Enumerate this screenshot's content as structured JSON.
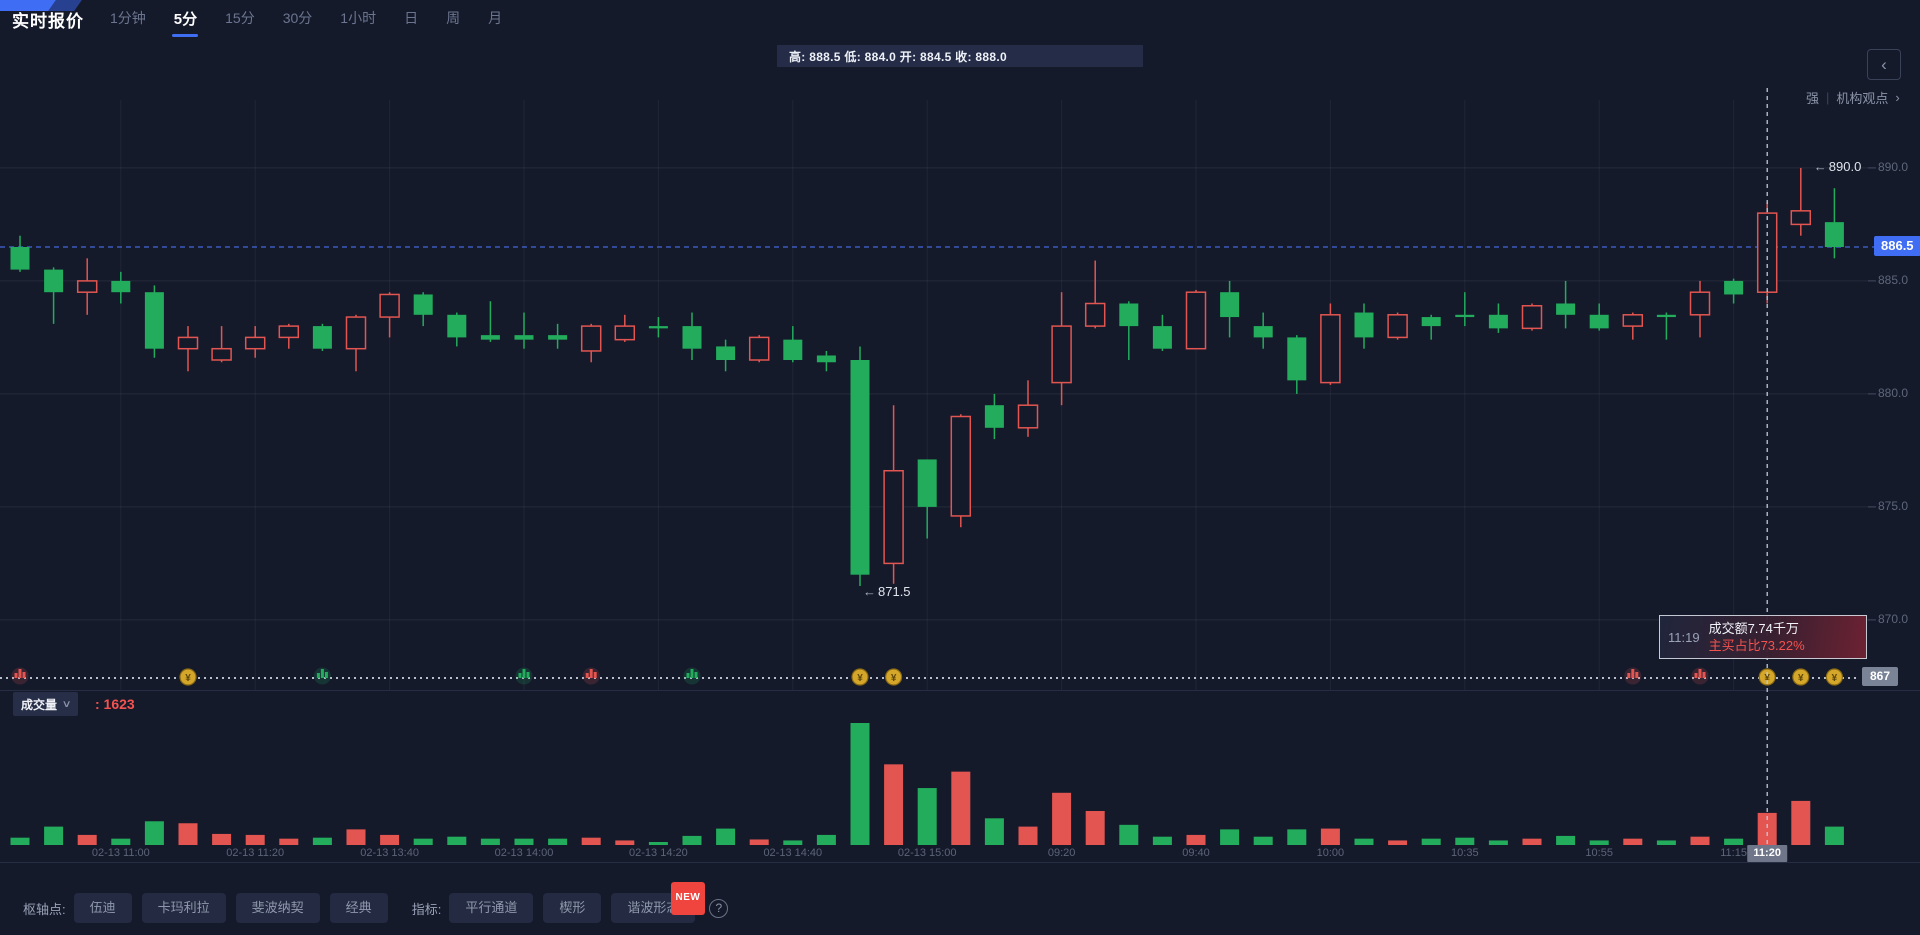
{
  "header": {
    "title": "实时报价",
    "tabs": [
      {
        "label": "1分钟",
        "active": false
      },
      {
        "label": "5分",
        "active": true
      },
      {
        "label": "15分",
        "active": false
      },
      {
        "label": "30分",
        "active": false
      },
      {
        "label": "1小时",
        "active": false
      },
      {
        "label": "日",
        "active": false
      },
      {
        "label": "周",
        "active": false
      },
      {
        "label": "月",
        "active": false
      }
    ]
  },
  "info_bar": {
    "text": "高: 888.5 低: 884.0 开: 884.5 收: 888.0"
  },
  "side": {
    "collapse_icon": "‹",
    "strength": "强",
    "divider": "|",
    "link": "机构观点",
    "chevron": "›"
  },
  "badges": {
    "current_price": "886.5",
    "floor": "867",
    "crosshair_time": "11:20"
  },
  "annotations": {
    "high": {
      "arrow": "←",
      "text": "890.0"
    },
    "low": {
      "arrow": "←",
      "text": "871.5"
    }
  },
  "tooltip": {
    "time": "11:19",
    "line1": "成交额7.74千万",
    "line2": "主买占比73.22%"
  },
  "volume_header": {
    "name": "成交量",
    "chevron": "∨",
    "value": ": 1623"
  },
  "toolbar": {
    "pivot_label": "枢轴点:",
    "pivot_buttons": [
      "伍迪",
      "卡玛利拉",
      "斐波纳契",
      "经典"
    ],
    "indicator_label": "指标:",
    "indicators": [
      {
        "label": "平行通道"
      },
      {
        "label": "楔形"
      },
      {
        "label": "谐波形态",
        "badge": "NEW"
      }
    ],
    "help": "?"
  },
  "colors": {
    "up": "#e25550",
    "down": "#22ac5c",
    "accent_blue": "#3f6ef5",
    "gold": "#d4a62a",
    "red_text": "#f4524e",
    "bg": "#151a2b",
    "grid": "rgba(255,255,255,0.07)",
    "vgrid": "rgba(255,255,255,0.05)",
    "crosshair": "#c2c8d4",
    "separator_dots": "#b8bfcc"
  },
  "chart_data": {
    "type": "candlestick",
    "interval": "5分",
    "convention": "red=up(hollow), green=down(solid)",
    "current_price": 886.5,
    "hovered_volume": 1623,
    "y_ticks": [
      {
        "price": 890,
        "label": "890.0"
      },
      {
        "price": 885,
        "label": "885.0"
      },
      {
        "price": 880,
        "label": "880.0"
      },
      {
        "price": 875,
        "label": "875.0"
      },
      {
        "price": 870,
        "label": "870.0"
      }
    ],
    "ylim_shown": [
      867,
      891.5
    ],
    "x_labels": [
      {
        "index": 3,
        "label": "02-13 11:00"
      },
      {
        "index": 7,
        "label": "02-13 11:20"
      },
      {
        "index": 11,
        "label": "02-13 13:40"
      },
      {
        "index": 15,
        "label": "02-13 14:00"
      },
      {
        "index": 19,
        "label": "02-13 14:20"
      },
      {
        "index": 23,
        "label": "02-13 14:40"
      },
      {
        "index": 27,
        "label": "02-13 15:00"
      },
      {
        "index": 31,
        "label": "09:20"
      },
      {
        "index": 35,
        "label": "09:40"
      },
      {
        "index": 39,
        "label": "10:00"
      },
      {
        "index": 43,
        "label": "10:35"
      },
      {
        "index": 47,
        "label": "10:55"
      },
      {
        "index": 51,
        "label": "11:15"
      }
    ],
    "crosshair_index": 52,
    "high_annotation": {
      "index": 53,
      "price": 890.0
    },
    "low_annotation": {
      "index": 25,
      "price": 871.5
    },
    "candles_ohlc": [
      [
        886.5,
        887.0,
        885.4,
        885.5
      ],
      [
        885.5,
        885.6,
        883.1,
        884.5
      ],
      [
        884.5,
        886.0,
        883.5,
        885.0
      ],
      [
        885.0,
        885.4,
        884.0,
        884.5
      ],
      [
        884.5,
        884.8,
        881.6,
        882.0
      ],
      [
        882.0,
        883.0,
        881.0,
        882.5
      ],
      [
        881.5,
        883.0,
        881.4,
        882.0
      ],
      [
        882.0,
        883.0,
        881.6,
        882.5
      ],
      [
        882.5,
        883.1,
        882.0,
        883.0
      ],
      [
        883.0,
        883.1,
        881.9,
        882.0
      ],
      [
        882.0,
        883.5,
        881.0,
        883.4
      ],
      [
        883.4,
        884.5,
        882.5,
        884.4
      ],
      [
        884.4,
        884.5,
        883.0,
        883.5
      ],
      [
        883.5,
        883.6,
        882.1,
        882.5
      ],
      [
        882.6,
        884.1,
        882.3,
        882.4
      ],
      [
        882.6,
        883.6,
        882.0,
        882.4
      ],
      [
        882.6,
        883.1,
        882.0,
        882.4
      ],
      [
        881.9,
        883.1,
        881.4,
        883.0
      ],
      [
        882.4,
        883.5,
        882.3,
        883.0
      ],
      [
        883.0,
        883.4,
        882.5,
        882.9
      ],
      [
        883.0,
        883.6,
        881.5,
        882.0
      ],
      [
        882.1,
        882.4,
        881.0,
        881.5
      ],
      [
        881.5,
        882.6,
        881.4,
        882.5
      ],
      [
        882.4,
        883.0,
        881.4,
        881.5
      ],
      [
        881.7,
        881.9,
        881.0,
        881.4
      ],
      [
        881.5,
        882.1,
        871.5,
        872.0
      ],
      [
        872.5,
        879.5,
        871.6,
        876.6
      ],
      [
        877.1,
        877.1,
        873.6,
        875.0
      ],
      [
        874.6,
        879.1,
        874.1,
        879.0
      ],
      [
        879.5,
        880.0,
        878.0,
        878.5
      ],
      [
        878.5,
        880.6,
        878.1,
        879.5
      ],
      [
        880.5,
        884.5,
        879.5,
        883.0
      ],
      [
        883.0,
        885.9,
        882.9,
        884.0
      ],
      [
        884.0,
        884.1,
        881.5,
        883.0
      ],
      [
        883.0,
        883.5,
        881.9,
        882.0
      ],
      [
        882.0,
        884.6,
        882.0,
        884.5
      ],
      [
        884.5,
        885.0,
        882.5,
        883.4
      ],
      [
        883.0,
        883.6,
        882.0,
        882.5
      ],
      [
        882.5,
        882.6,
        880.0,
        880.6
      ],
      [
        880.5,
        884.0,
        880.4,
        883.5
      ],
      [
        883.6,
        884.0,
        882.0,
        882.5
      ],
      [
        882.5,
        883.6,
        882.4,
        883.5
      ],
      [
        883.4,
        883.5,
        882.4,
        883.0
      ],
      [
        883.5,
        884.5,
        883.0,
        883.4
      ],
      [
        883.5,
        884.0,
        882.7,
        882.9
      ],
      [
        882.9,
        884.0,
        882.8,
        883.9
      ],
      [
        884.0,
        885.0,
        882.9,
        883.5
      ],
      [
        883.5,
        884.0,
        882.8,
        882.9
      ],
      [
        883.0,
        883.6,
        882.4,
        883.5
      ],
      [
        883.5,
        883.6,
        882.4,
        883.4
      ],
      [
        883.5,
        885.0,
        882.5,
        884.5
      ],
      [
        885.0,
        885.1,
        884.0,
        884.4
      ],
      [
        884.5,
        888.5,
        884.0,
        888.0
      ],
      [
        887.5,
        890.0,
        887.0,
        888.1
      ],
      [
        887.6,
        889.1,
        886.0,
        886.5
      ]
    ],
    "volumes": [
      370,
      930,
      510,
      320,
      1200,
      1100,
      560,
      510,
      320,
      370,
      790,
      510,
      320,
      420,
      320,
      320,
      320,
      370,
      230,
      140,
      460,
      830,
      280,
      230,
      510,
      6170,
      4080,
      2880,
      3710,
      1350,
      930,
      2640,
      1720,
      1020,
      420,
      510,
      790,
      420,
      790,
      830,
      320,
      230,
      320,
      370,
      230,
      320,
      460,
      230,
      320,
      230,
      420,
      320,
      1623,
      2230,
      930
    ],
    "markers": [
      {
        "index": 0,
        "type": "red-bars"
      },
      {
        "index": 5,
        "type": "gold-coin"
      },
      {
        "index": 9,
        "type": "green-bars"
      },
      {
        "index": 15,
        "type": "green-bars"
      },
      {
        "index": 17,
        "type": "red-bars"
      },
      {
        "index": 20,
        "type": "green-bars"
      },
      {
        "index": 25,
        "type": "gold-coin"
      },
      {
        "index": 26,
        "type": "gold-coin"
      },
      {
        "index": 48,
        "type": "red-bars"
      },
      {
        "index": 50,
        "type": "red-bars"
      },
      {
        "index": 52,
        "type": "gold-coin"
      },
      {
        "index": 53,
        "type": "gold-coin"
      },
      {
        "index": 54,
        "type": "gold-coin"
      }
    ]
  }
}
